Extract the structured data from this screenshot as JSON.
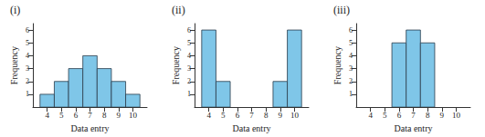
{
  "chart_data": [
    {
      "type": "histogram",
      "title": "(i)",
      "x_label": "Data entry",
      "y_label": "Frequency",
      "bins": [
        3.5,
        4.5,
        5.5,
        6.5,
        7.5,
        8.5,
        9.5,
        10.5
      ],
      "counts": [
        1,
        2,
        3,
        4,
        3,
        2,
        1
      ],
      "xlim": [
        3,
        11
      ],
      "xticks": [
        4,
        5,
        6,
        7,
        8,
        9,
        10
      ],
      "ylim": [
        0,
        6.5
      ],
      "yticks": [
        1,
        2,
        3,
        4,
        5,
        6
      ],
      "color": "#7fc6e8",
      "grid": false
    },
    {
      "type": "histogram",
      "title": "(ii)",
      "x_label": "Data entry",
      "y_label": "Frequency",
      "bins": [
        3.5,
        4.5,
        5.5,
        6.5,
        7.5,
        8.5,
        9.5,
        10.5
      ],
      "counts": [
        6,
        2,
        0,
        0,
        0,
        2,
        6
      ],
      "xlim": [
        3,
        11
      ],
      "xticks": [
        4,
        5,
        6,
        7,
        8,
        9,
        10
      ],
      "ylim": [
        0,
        6.5
      ],
      "yticks": [
        1,
        2,
        3,
        4,
        5,
        6
      ],
      "color": "#7fc6e8",
      "grid": false
    },
    {
      "type": "histogram",
      "title": "(iii)",
      "x_label": "Data entry",
      "y_label": "Frequency",
      "bins": [
        3.5,
        4.5,
        5.5,
        6.5,
        7.5,
        8.5,
        9.5,
        10.5
      ],
      "counts": [
        0,
        0,
        5,
        6,
        5,
        0,
        0
      ],
      "xlim": [
        3,
        11
      ],
      "xticks": [
        4,
        5,
        6,
        7,
        8,
        9,
        10
      ],
      "ylim": [
        0,
        6.5
      ],
      "yticks": [
        1,
        2,
        3,
        4,
        5,
        6
      ],
      "color": "#7fc6e8",
      "grid": false
    }
  ]
}
